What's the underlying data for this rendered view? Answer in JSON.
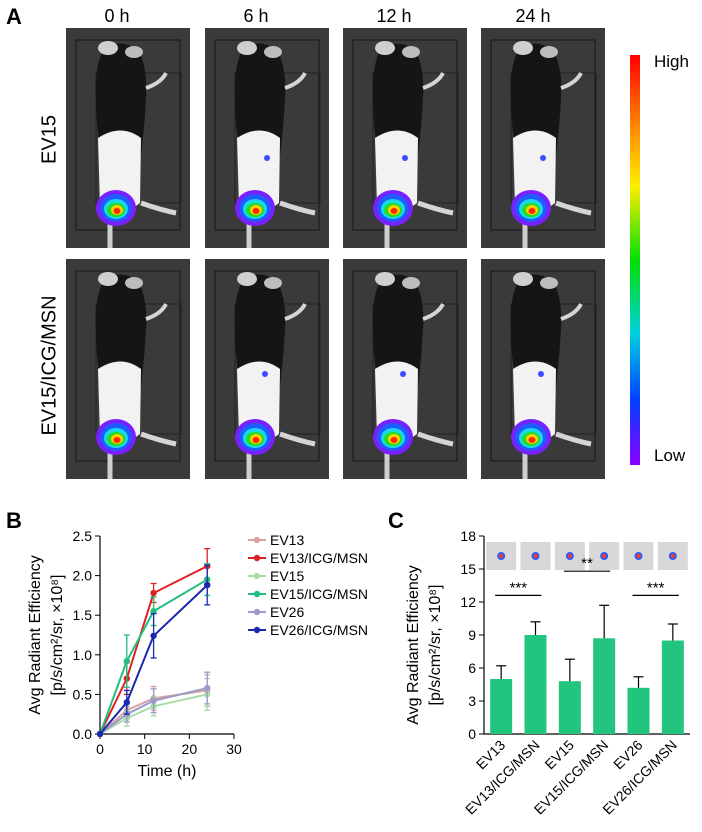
{
  "panels": {
    "a": {
      "letter": "A",
      "time_points": [
        "0 h",
        "6 h",
        "12 h",
        "24 h"
      ],
      "rows": [
        "EV15",
        "EV15/ICG/MSN"
      ],
      "colorbar": {
        "high": "High",
        "low": "Low"
      }
    },
    "b": {
      "letter": "B"
    },
    "c": {
      "letter": "C"
    }
  },
  "colors": {
    "EV13": "#d9a3a3",
    "EV13/ICG/MSN": "#e02020",
    "EV15": "#a8dca8",
    "EV15/ICG/MSN": "#1fbf80",
    "EV26": "#9a9ac8",
    "EV26/ICG/MSN": "#1a28b0",
    "bar": "#22c47e"
  },
  "chart_data": [
    {
      "type": "line",
      "panel": "B",
      "xlabel": "Time (h)",
      "ylabel_line1": "Avg Radiant Efficiency",
      "ylabel_line2": "[p/s/cm²/sr, ×10⁸]",
      "xlim": [
        0,
        30
      ],
      "ylim": [
        0,
        2.5
      ],
      "xticks": [
        "0",
        "10",
        "20",
        "30"
      ],
      "yticks": [
        "0.0",
        "0.5",
        "1.0",
        "1.5",
        "2.0",
        "2.5"
      ],
      "x": [
        0,
        6,
        12,
        24
      ],
      "legend_position": "right",
      "series": [
        {
          "name": "EV13",
          "values": [
            0,
            0.3,
            0.45,
            0.55
          ],
          "errors": [
            0,
            0.1,
            0.15,
            0.2
          ]
        },
        {
          "name": "EV13/ICG/MSN",
          "values": [
            0,
            0.7,
            1.78,
            2.12
          ],
          "errors": [
            0,
            0.2,
            0.12,
            0.22
          ]
        },
        {
          "name": "EV15",
          "values": [
            0,
            0.2,
            0.35,
            0.5
          ],
          "errors": [
            0,
            0.1,
            0.12,
            0.2
          ]
        },
        {
          "name": "EV15/ICG/MSN",
          "values": [
            0,
            0.92,
            1.55,
            1.95
          ],
          "errors": [
            0,
            0.33,
            0.18,
            0.2
          ]
        },
        {
          "name": "EV26",
          "values": [
            0,
            0.25,
            0.42,
            0.58
          ],
          "errors": [
            0,
            0.1,
            0.15,
            0.2
          ]
        },
        {
          "name": "EV26/ICG/MSN",
          "values": [
            0,
            0.4,
            1.24,
            1.88
          ],
          "errors": [
            0,
            0.15,
            0.28,
            0.25
          ]
        }
      ]
    },
    {
      "type": "bar",
      "panel": "C",
      "ylabel_line1": "Avg Radiant Efficiency",
      "ylabel_line2": "[p/s/cm²/sr, ×10⁸]",
      "ylim": [
        0,
        18
      ],
      "yticks": [
        "0",
        "3",
        "6",
        "9",
        "12",
        "15",
        "18"
      ],
      "categories": [
        "EV13",
        "EV13/ICG/MSN",
        "EV15",
        "EV15/ICG/MSN",
        "EV26",
        "EV26/ICG/MSN"
      ],
      "values": [
        5.0,
        9.0,
        4.8,
        8.7,
        4.2,
        8.5
      ],
      "errors": [
        1.2,
        1.2,
        2.0,
        3.0,
        1.0,
        1.5
      ],
      "significance": [
        {
          "pair": [
            0,
            1
          ],
          "label": "***"
        },
        {
          "pair": [
            2,
            3
          ],
          "label": "**"
        },
        {
          "pair": [
            4,
            5
          ],
          "label": "***"
        }
      ]
    }
  ]
}
